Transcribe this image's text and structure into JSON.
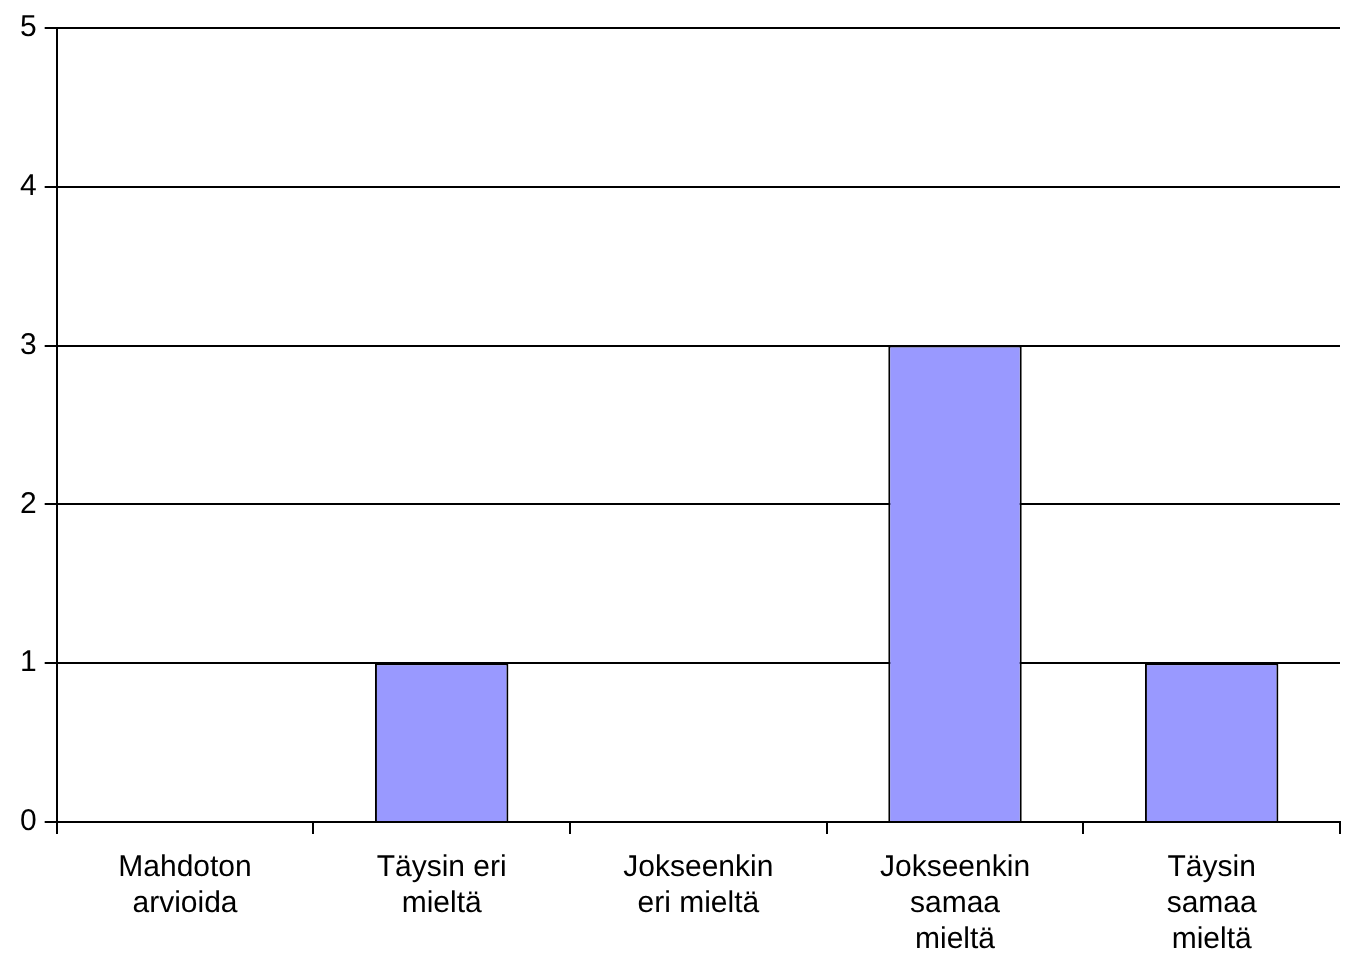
{
  "chart_data": {
    "type": "bar",
    "categories": [
      "Mahdoton arvioida",
      "Täysin eri mieltä",
      "Jokseenkin eri mieltä",
      "Jokseenkin samaa mieltä",
      "Täysin samaa mieltä"
    ],
    "values": [
      0,
      1,
      0,
      3,
      1
    ],
    "color": "#9999ff",
    "ylim": [
      0,
      5
    ],
    "yticks": [
      0,
      1,
      2,
      3,
      4,
      5
    ],
    "grid": "y",
    "legend": false
  }
}
